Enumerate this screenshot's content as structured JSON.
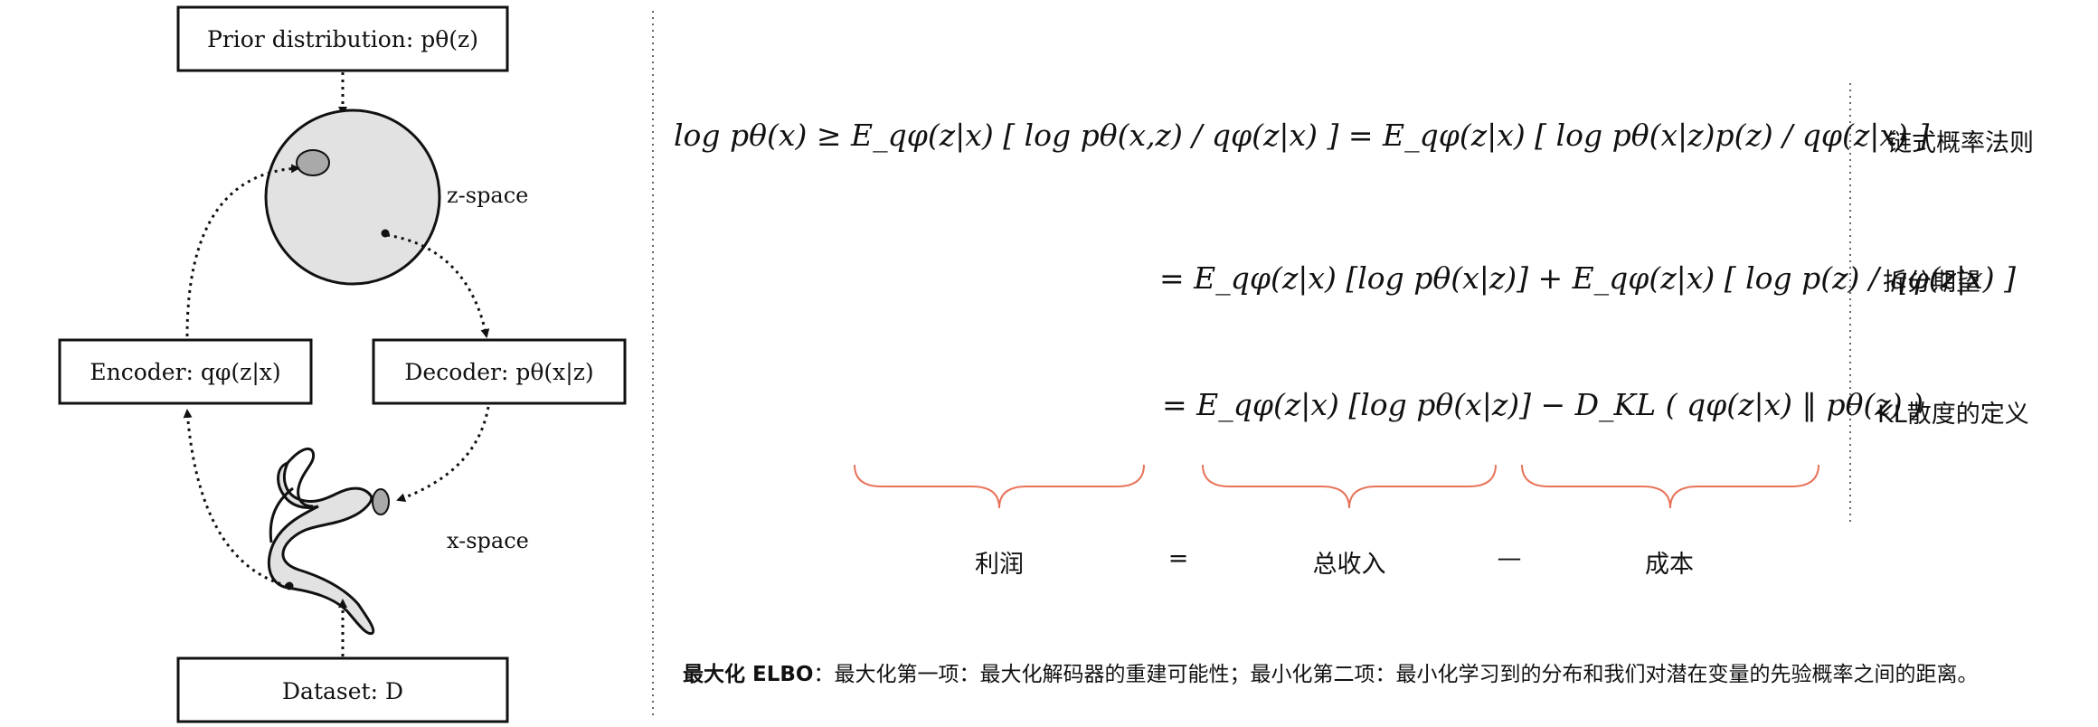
{
  "diagram": {
    "prior_box": "Prior distribution: pθ(z)",
    "z_space": "z-space",
    "encoder_box": "Encoder: qφ(z|x)",
    "decoder_box": "Decoder: pθ(x|z)",
    "x_space": "x-space",
    "dataset_box": "Dataset: D"
  },
  "derivation": {
    "line1": "log pθ(x) ≥ E_qφ(z|x) [ log pθ(x,z) / qφ(z|x) ] = E_qφ(z|x) [ log pθ(x|z)p(z) / qφ(z|x) ]",
    "line2": "= E_qφ(z|x) [log pθ(x|z)] + E_qφ(z|x) [ log p(z) / qφ(z|x) ]",
    "line3": "= E_qφ(z|x) [log pθ(x|z)] − D_KL ( qφ(z|x) ‖ pθ(z) )",
    "reason1": "链式概率法则",
    "reason2": "拆分期望",
    "reason3": "KL散度的定义"
  },
  "analogy": {
    "profit": "利润",
    "equals": "=",
    "revenue": "总收入",
    "minus": "—",
    "cost": "成本"
  },
  "note": {
    "bold": "最大化 ELBO",
    "text": "：最大化第一项：最大化解码器的重建可能性；最小化第二项：最小化学习到的分布和我们对潜在变量的先验概率之间的距离。"
  },
  "colors": {
    "brace": "#e8735a",
    "fill": "#e2e2e2",
    "ellipse": "#a9a9a9"
  }
}
